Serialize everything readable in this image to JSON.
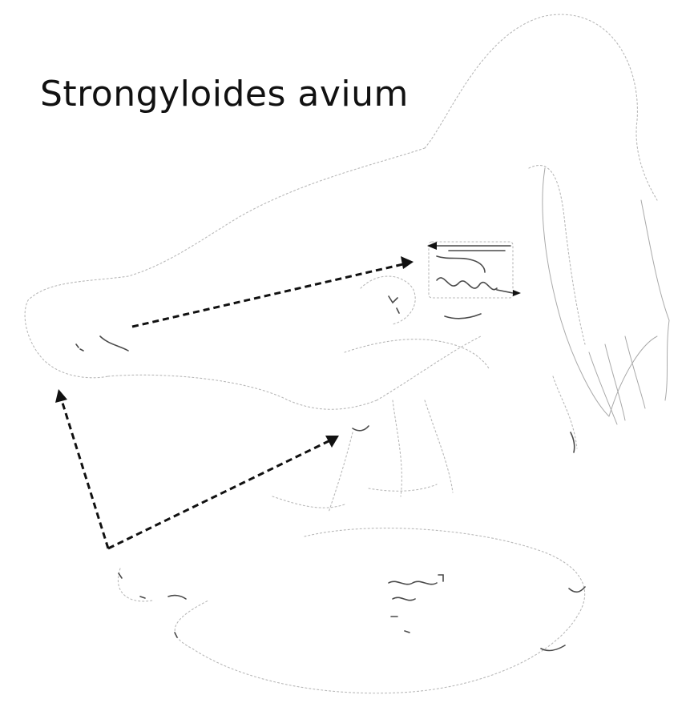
{
  "title": "Strongyloides avium",
  "figure": {
    "subjects": [
      "bird-outline",
      "intestine-inset",
      "soil-larvae",
      "worm-detail"
    ],
    "arrow_color": "#111111",
    "outline_color": "#b8b8b8"
  }
}
